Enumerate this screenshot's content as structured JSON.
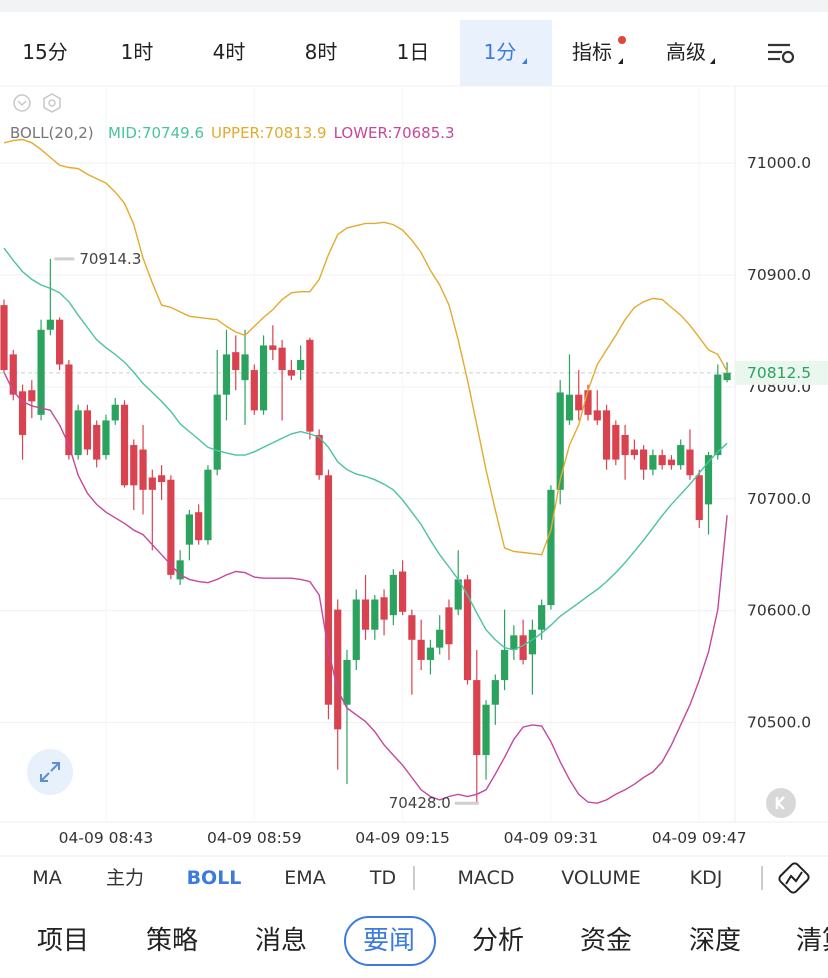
{
  "tabs": {
    "items": [
      "15分",
      "1时",
      "4时",
      "8时",
      "1日",
      "1分",
      "指标",
      "高级"
    ],
    "active": 5
  },
  "chart_data": {
    "type": "candlestick",
    "indicator_label": "BOLL(20,2)",
    "categories": [
      null,
      null,
      null,
      null,
      null,
      null,
      null,
      null,
      null,
      null,
      null,
      "04-09 08:43",
      null,
      null,
      null,
      null,
      null,
      null,
      null,
      null,
      null,
      null,
      null,
      null,
      null,
      null,
      null,
      "04-09 08:59",
      null,
      null,
      null,
      null,
      null,
      null,
      null,
      null,
      null,
      null,
      null,
      null,
      null,
      null,
      null,
      "04-09 09:15",
      null,
      null,
      null,
      null,
      null,
      null,
      null,
      null,
      null,
      null,
      null,
      null,
      null,
      null,
      null,
      "04-09 09:31",
      null,
      null,
      null,
      null,
      null,
      null,
      null,
      null,
      null,
      null,
      null,
      null,
      null,
      null,
      null,
      "04-09 09:47",
      null,
      null,
      null
    ],
    "open": [
      70873,
      70829,
      70796,
      70797,
      70775,
      70851,
      70860,
      70820,
      70739,
      70779,
      70766,
      70739,
      70770,
      70784,
      70748,
      70744,
      70719,
      70721,
      70717,
      70628,
      70659,
      70688,
      70663,
      70726,
      70793,
      70831,
      70806,
      70815,
      70779,
      70837,
      70835,
      70815,
      70815,
      70842,
      70757,
      70721,
      70601,
      70516,
      70556,
      70610,
      70583,
      70612,
      70596,
      70635,
      70596,
      70574,
      70556,
      70567,
      70603,
      70601,
      70628,
      70538,
      70471,
      70516,
      70538,
      70565,
      70578,
      70561,
      70583,
      70605,
      70708,
      70770,
      70793,
      70797,
      70779,
      70779,
      70766,
      70757,
      70744,
      70744,
      70726,
      70739,
      70735,
      70730,
      70744,
      70721,
      70695,
      70739,
      70806
    ],
    "high": [
      70878,
      70833,
      70802,
      70806,
      70860,
      70914.3,
      70862,
      70824,
      70784,
      70784,
      70770,
      70775,
      70790,
      70788,
      70753,
      70766,
      70726,
      70730,
      70721,
      70654,
      70690,
      70695,
      70730,
      70833,
      70851,
      70846,
      70851,
      70820,
      70846,
      70855,
      70842,
      70824,
      70837,
      70844,
      70762,
      70726,
      70610,
      70565,
      70619,
      70632,
      70614,
      70619,
      70637,
      70645,
      70601,
      70592,
      70574,
      70596,
      70610,
      70654,
      70632,
      70565,
      70520,
      70543,
      70601,
      70587,
      70592,
      70592,
      70610,
      70712,
      70806,
      70829,
      70815,
      70802,
      70797,
      70784,
      70770,
      70766,
      70753,
      70748,
      70744,
      70744,
      70739,
      70753,
      70762,
      70726,
      70742,
      70820,
      70822
    ],
    "low": [
      70813,
      70788,
      70735,
      70772,
      70770,
      70846,
      70815,
      70735,
      70735,
      70739,
      70728,
      70735,
      70766,
      70710,
      70690,
      70686,
      70654,
      70699,
      70628,
      70623,
      70645,
      70659,
      70659,
      70721,
      70770,
      70797,
      70766,
      70775,
      70775,
      70824,
      70770,
      70806,
      70806,
      70753,
      70717,
      70503,
      70458,
      70445,
      70547,
      70574,
      70574,
      70578,
      70587,
      70596,
      70525,
      70547,
      70543,
      70561,
      70556,
      70596,
      70534,
      70428,
      70449,
      70498,
      70529,
      70556,
      70552,
      70525,
      70574,
      70601,
      70695,
      70766,
      70770,
      70770,
      70766,
      70726,
      70730,
      70717,
      70735,
      70717,
      70721,
      70726,
      70726,
      70726,
      70717,
      70674,
      70668,
      70735,
      70804
    ],
    "close": [
      70815,
      70793,
      70757,
      70787,
      70851,
      70860,
      70820,
      70739,
      70779,
      70744,
      70735,
      70770,
      70784,
      70712,
      70712,
      70708,
      70708,
      70715,
      70632,
      70645,
      70686,
      70663,
      70726,
      70793,
      70829,
      70815,
      70829,
      70779,
      70837,
      70833,
      70815,
      70810,
      70824,
      70760,
      70721,
      70516,
      70494,
      70556,
      70610,
      70583,
      70610,
      70592,
      70632,
      70599,
      70574,
      70556,
      70567,
      70583,
      70570,
      70628,
      70538,
      70471,
      70516,
      70538,
      70565,
      70578,
      70556,
      70583,
      70605,
      70708,
      70795,
      70793,
      70779,
      70775,
      70770,
      70735,
      70735,
      70739,
      70739,
      70726,
      70739,
      70730,
      70730,
      70748,
      70721,
      70681,
      70739,
      70811,
      70812.5
    ],
    "up_color": "#2ba35f",
    "down_color": "#d9434f",
    "series": [
      {
        "name": "MID:70749.6",
        "color": "#49c3a0",
        "values": [
          70924,
          70913,
          70903,
          70896,
          70891,
          70888,
          70884,
          70876,
          70864,
          70853,
          70842,
          70835,
          70829,
          70822,
          70813,
          70803,
          70795,
          70787,
          70778,
          70767,
          70760,
          70753,
          70746,
          70743,
          70741,
          70739,
          70739,
          70742,
          70746,
          70750,
          70754,
          70758,
          70760,
          70758,
          70755,
          70746,
          70733,
          70726,
          70722,
          70720,
          70717,
          70713,
          70708,
          70699,
          70688,
          70677,
          70663,
          70650,
          70639,
          70628,
          70614,
          70598,
          70583,
          70574,
          70567,
          70565,
          70569,
          70574,
          70580,
          70587,
          70595,
          70601,
          70607,
          70613,
          70619,
          70626,
          70634,
          70643,
          70653,
          70663,
          70674,
          70685,
          70695,
          70704,
          70713,
          70723,
          70733,
          70742,
          70749.6
        ]
      },
      {
        "name": "UPPER:70813.9",
        "color": "#e3ab2e",
        "values": [
          71018,
          71020,
          71021,
          71018,
          71012,
          71005,
          70998,
          70996,
          70995,
          70990,
          70986,
          70982,
          70974,
          70964,
          70945,
          70915,
          70893,
          70873,
          70871,
          70867,
          70863,
          70862,
          70861,
          70860,
          70854,
          70849,
          70846,
          70854,
          70862,
          70869,
          70878,
          70884,
          70885,
          70885,
          70896,
          70918,
          70936,
          70942,
          70944,
          70946,
          70946,
          70947,
          70945,
          70940,
          70931,
          70920,
          70904,
          70891,
          70873,
          70842,
          70806,
          70766,
          70726,
          70690,
          70656,
          70653,
          70652,
          70651,
          70650,
          70672,
          70717,
          70748,
          70766,
          70797,
          70820,
          70833,
          70846,
          70860,
          70871,
          70876,
          70879,
          70878,
          70871,
          70864,
          70855,
          70844,
          70833,
          70829,
          70813.9
        ]
      },
      {
        "name": "LOWER:70685.3",
        "color": "#c6479c",
        "values": [
          70813,
          70796,
          70787,
          70783,
          70781,
          70779,
          70766,
          70748,
          70721,
          70705,
          70695,
          70688,
          70683,
          70678,
          70672,
          70668,
          70659,
          70650,
          70641,
          70632,
          70628,
          70626,
          70625,
          70628,
          70632,
          70635,
          70634,
          70630,
          70629,
          70629,
          70629,
          70629,
          70628,
          70626,
          70614,
          70565,
          70529,
          70513,
          70507,
          70501,
          70492,
          70480,
          70471,
          70462,
          70451,
          70440,
          70434,
          70431,
          70434,
          70436,
          70434,
          70436,
          70440,
          70454,
          70469,
          70485,
          70496,
          70498,
          70497,
          70483,
          70465,
          70449,
          70436,
          70429,
          70428,
          70431,
          70436,
          70440,
          70445,
          70451,
          70456,
          70465,
          70480,
          70498,
          70516,
          70538,
          70563,
          70601,
          70685.3
        ]
      }
    ],
    "ylim": [
      70413,
      71067
    ],
    "yticks": [
      {
        "value": 70500,
        "label": "70500.0"
      },
      {
        "value": 70600,
        "label": "70600.0"
      },
      {
        "value": 70700,
        "label": "70700.0"
      },
      {
        "value": 70800,
        "label": "70800.0"
      },
      {
        "value": 70900,
        "label": "70900.0"
      },
      {
        "value": 71000,
        "label": "71000.0"
      }
    ],
    "last_price": 70812.5,
    "annotations": [
      70914.3,
      {
        "value": 70428,
        "label": "70428.0"
      }
    ],
    "grid": true
  },
  "indicators": {
    "items": [
      "MA",
      "主力",
      "BOLL",
      "EMA",
      "TD",
      "MACD",
      "VOLUME",
      "KDJ"
    ],
    "active": 2
  },
  "nav": {
    "items": [
      "项目",
      "策略",
      "消息",
      "要闻",
      "分析",
      "资金",
      "深度",
      "清算"
    ],
    "active": 3
  }
}
